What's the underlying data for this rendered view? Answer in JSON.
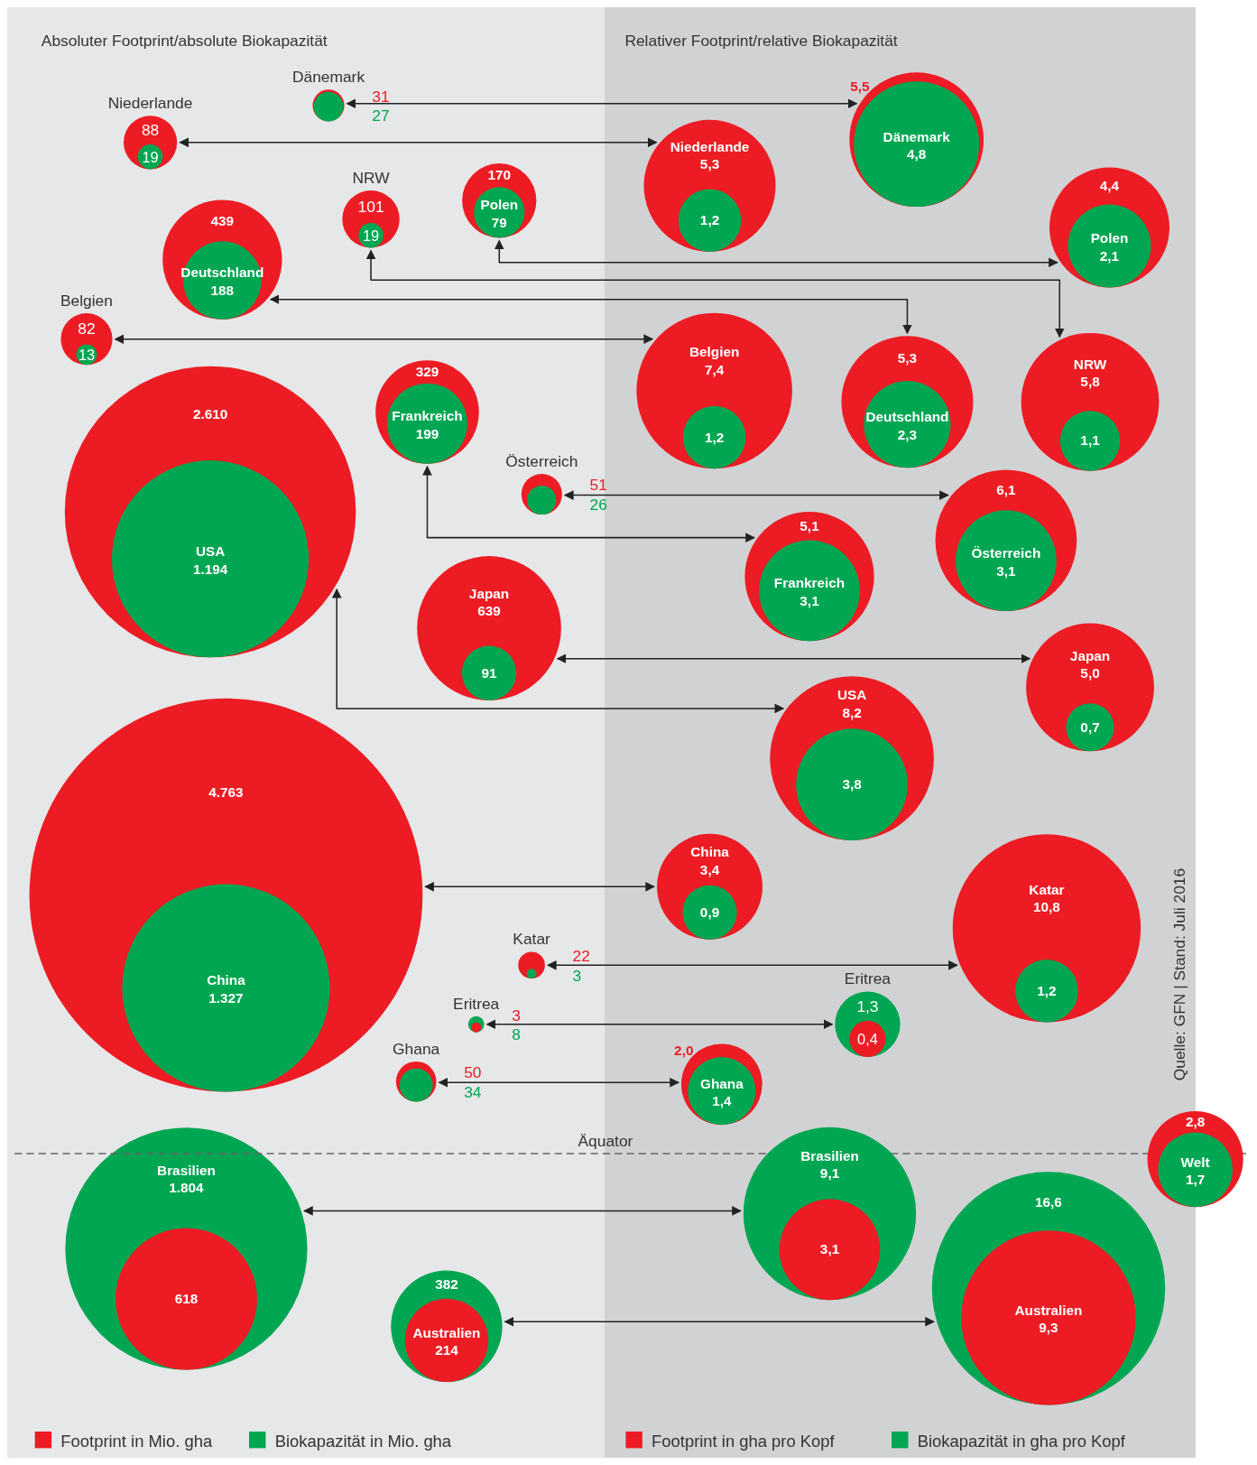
{
  "chart_data": [
    {
      "type": "other",
      "title": "Absoluter Footprint/absolute Biokapazität",
      "categories": [
        "Dänemark",
        "Niederlande",
        "NRW",
        "Polen",
        "Deutschland",
        "Belgien",
        "Frankreich",
        "USA",
        "Österreich",
        "Japan",
        "China",
        "Katar",
        "Eritrea",
        "Ghana",
        "Brasilien",
        "Australien"
      ],
      "series": [
        {
          "name": "Footprint in Mio. gha",
          "color": "#ed1c24",
          "values": [
            31,
            88,
            101,
            170,
            439,
            82,
            329,
            2610,
            51,
            639,
            4763,
            22,
            3,
            50,
            618,
            214
          ],
          "value_labels": [
            "31",
            "88",
            "101",
            "170",
            "439",
            "82",
            "329",
            "2.610",
            "51",
            "639",
            "4.763",
            "22",
            "3",
            "50",
            "618",
            "214"
          ]
        },
        {
          "name": "Biokapazität in Mio. gha",
          "color": "#00a651",
          "values": [
            27,
            19,
            19,
            79,
            188,
            13,
            199,
            1194,
            26,
            91,
            1327,
            3,
            8,
            34,
            1804,
            382
          ],
          "value_labels": [
            "27",
            "19",
            "19",
            "79",
            "188",
            "13",
            "199",
            "1.194",
            "26",
            "91",
            "1.327",
            "3",
            "8",
            "34",
            "1.804",
            "382"
          ]
        }
      ],
      "legend": "bottom"
    },
    {
      "type": "other",
      "title": "Relativer Footprint/relative Biokapazität",
      "categories": [
        "Dänemark",
        "Niederlande",
        "NRW",
        "Polen",
        "Deutschland",
        "Belgien",
        "Frankreich",
        "USA",
        "Österreich",
        "Japan",
        "China",
        "Katar",
        "Eritrea",
        "Ghana",
        "Brasilien",
        "Australien",
        "Welt"
      ],
      "series": [
        {
          "name": "Footprint in gha pro Kopf",
          "color": "#ed1c24",
          "values": [
            5.5,
            5.3,
            5.8,
            4.4,
            5.3,
            7.4,
            5.1,
            8.2,
            6.1,
            5.0,
            3.4,
            10.8,
            0.4,
            2.0,
            3.1,
            9.3,
            2.8
          ],
          "value_labels": [
            "5,5",
            "5,3",
            "5,8",
            "4,4",
            "5,3",
            "7,4",
            "5,1",
            "8,2",
            "6,1",
            "5,0",
            "3,4",
            "10,8",
            "0,4",
            "2,0",
            "3,1",
            "9,3",
            "2,8"
          ]
        },
        {
          "name": "Biokapazität in gha pro Kopf",
          "color": "#00a651",
          "values": [
            4.8,
            1.2,
            1.1,
            2.1,
            2.3,
            1.2,
            3.1,
            3.8,
            3.1,
            0.7,
            0.9,
            1.2,
            1.3,
            1.4,
            9.1,
            16.6,
            1.7
          ],
          "value_labels": [
            "4,8",
            "1,2",
            "1,1",
            "2,1",
            "2,3",
            "1,2",
            "3,1",
            "3,8",
            "3,1",
            "0,7",
            "0,9",
            "1,2",
            "1,3",
            "1,4",
            "9,1",
            "16,6",
            "1,7"
          ]
        }
      ],
      "legend": "bottom",
      "annotations": [
        "Äquator",
        "Quelle: GFN | Stand: Juli 2016"
      ]
    }
  ]
}
